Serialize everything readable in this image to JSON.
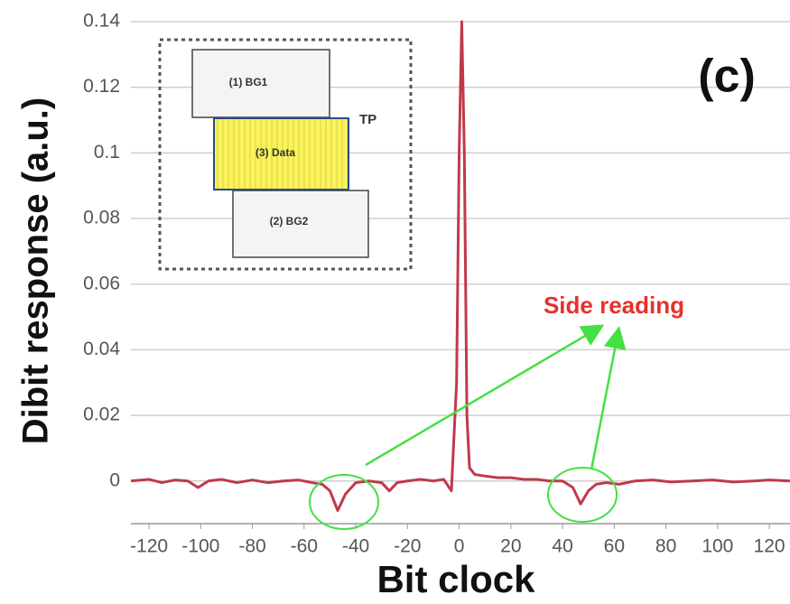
{
  "chart_data": {
    "type": "line",
    "panel_label": "(c)",
    "x_label": "Bit clock",
    "y_label": "Dibit response (a.u.)",
    "annotation": "Side reading",
    "inset": {
      "labels": [
        "(1) BG1",
        "(3) Data",
        "(2) BG2",
        "TP"
      ]
    },
    "x": [
      -127,
      -120,
      -115,
      -110,
      -105,
      -101,
      -97,
      -92,
      -86,
      -80,
      -74,
      -68,
      -62,
      -57,
      -53,
      -50,
      -47,
      -44,
      -40,
      -35,
      -30,
      -27,
      -24,
      -20,
      -15,
      -10,
      -6,
      -3,
      -1,
      0,
      1,
      2,
      3,
      4,
      6,
      10,
      15,
      20,
      25,
      30,
      35,
      40,
      44,
      47,
      50,
      53,
      57,
      62,
      68,
      75,
      82,
      90,
      98,
      106,
      114,
      120,
      128
    ],
    "series": [
      {
        "color": "#c0394b",
        "values": [
          0,
          0.0005,
          -0.0005,
          0.0003,
          0,
          -0.002,
          0,
          0.0005,
          -0.0005,
          0.0003,
          -0.0005,
          0,
          0.0003,
          -0.0005,
          -0.001,
          -0.003,
          -0.009,
          -0.004,
          -0.0005,
          0,
          -0.0005,
          -0.003,
          -0.0005,
          0,
          0.0005,
          0,
          0.0005,
          -0.003,
          0.03,
          0.1,
          0.14,
          0.1,
          0.02,
          0.004,
          0.002,
          0.0015,
          0.001,
          0.001,
          0.0005,
          0.0005,
          0,
          0,
          -0.002,
          -0.007,
          -0.003,
          -0.001,
          -0.0005,
          -0.001,
          0,
          0.0003,
          -0.0003,
          0,
          0.0003,
          -0.0003,
          0,
          0.0003,
          0
        ]
      }
    ],
    "xlim": [
      -127,
      128
    ],
    "ylim": [
      -0.013,
      0.14
    ],
    "xticks": [
      -120,
      -100,
      -80,
      -60,
      -40,
      -20,
      0,
      20,
      40,
      60,
      80,
      100,
      120
    ],
    "yticks": [
      0,
      0.02,
      0.04,
      0.06,
      0.08,
      0.1,
      0.12,
      0.14
    ],
    "grid": true
  }
}
